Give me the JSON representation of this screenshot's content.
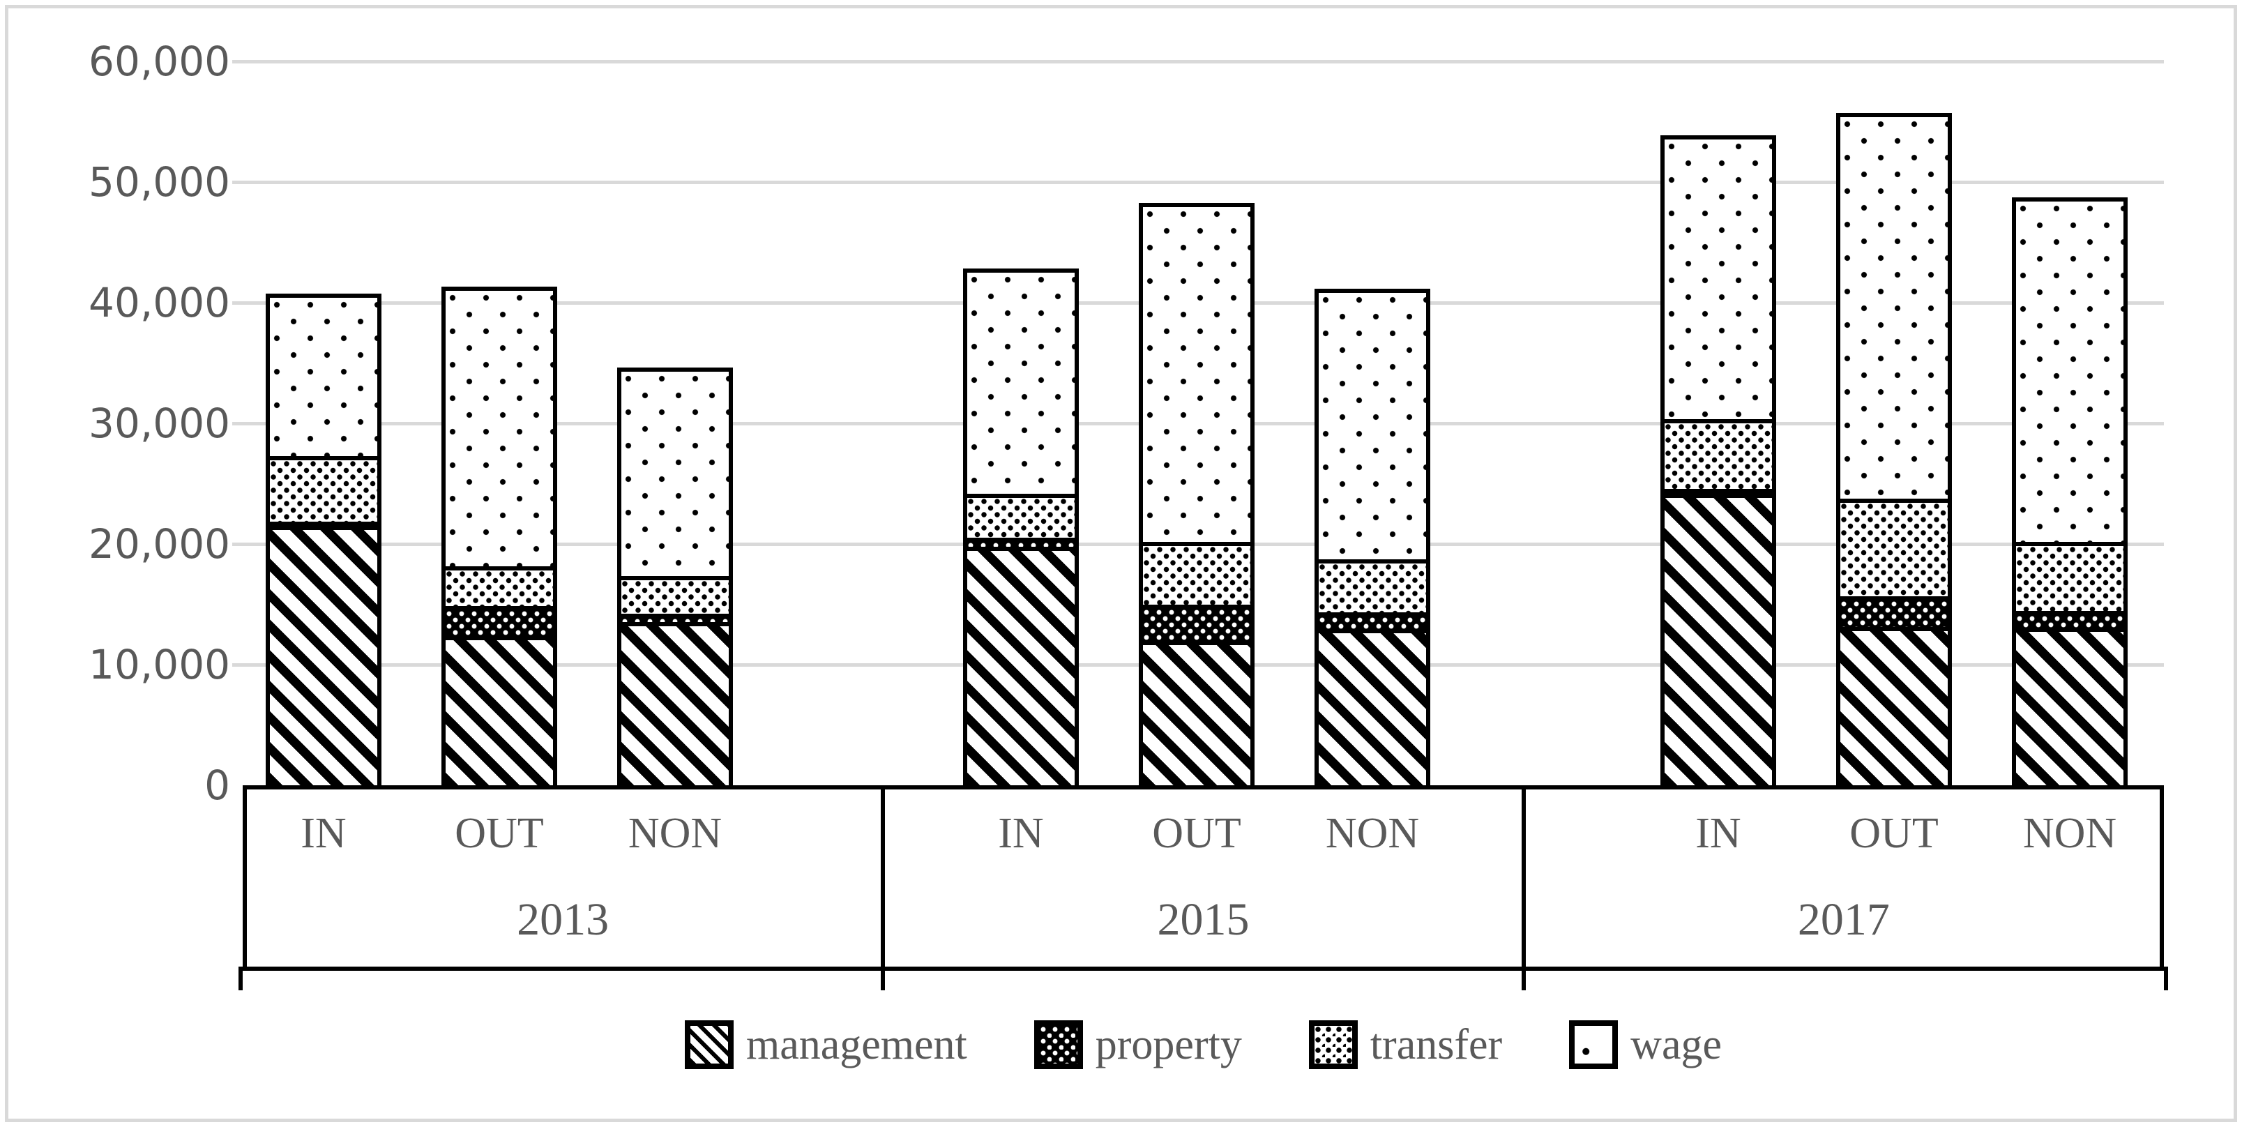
{
  "figure": {
    "background_color": "#ffffff",
    "border_color": "#d9d9d9",
    "text_color": "#595959",
    "gridline_color": "#d9d9d9",
    "bar_outline_color": "#000000"
  },
  "chart_data": {
    "type": "bar",
    "stacked": true,
    "title": "",
    "xlabel": "",
    "ylabel": "",
    "ylim": [
      0,
      60000
    ],
    "ytick_interval": 10000,
    "ytick_labels": [
      "0",
      "10,000",
      "20,000",
      "30,000",
      "40,000",
      "50,000",
      "60,000"
    ],
    "grid": true,
    "legend_position": "bottom",
    "series_order": [
      "management",
      "property",
      "transfer",
      "wage"
    ],
    "legend": [
      "management",
      "property",
      "transfer",
      "wage"
    ],
    "patterns": {
      "management": "black diagonal stripes",
      "property": "black fill with small white dots",
      "transfer": "dense black dot grid on white",
      "wage": "sparse black dots on white"
    },
    "groups": [
      {
        "year": "2013",
        "categories": [
          "IN",
          "OUT",
          "NON"
        ],
        "series": {
          "management": [
            21200,
            12000,
            13200
          ],
          "property": [
            300,
            2500,
            700
          ],
          "transfer": [
            5400,
            3300,
            3100
          ],
          "wage": [
            13500,
            23200,
            17300
          ]
        },
        "totals": [
          40400,
          41000,
          34300
        ]
      },
      {
        "year": "2015",
        "categories": [
          "IN",
          "OUT",
          "NON"
        ],
        "series": {
          "management": [
            19400,
            11600,
            12600
          ],
          "property": [
            800,
            3000,
            1400
          ],
          "transfer": [
            3600,
            5200,
            4400
          ],
          "wage": [
            18700,
            28100,
            22400
          ]
        },
        "totals": [
          42500,
          47900,
          40800
        ]
      },
      {
        "year": "2017",
        "categories": [
          "IN",
          "OUT",
          "NON"
        ],
        "series": {
          "management": [
            23800,
            12800,
            12700
          ],
          "property": [
            400,
            2500,
            1400
          ],
          "transfer": [
            5800,
            8100,
            5700
          ],
          "wage": [
            23500,
            32000,
            28600
          ]
        },
        "totals": [
          53500,
          55400,
          48400
        ]
      }
    ]
  }
}
